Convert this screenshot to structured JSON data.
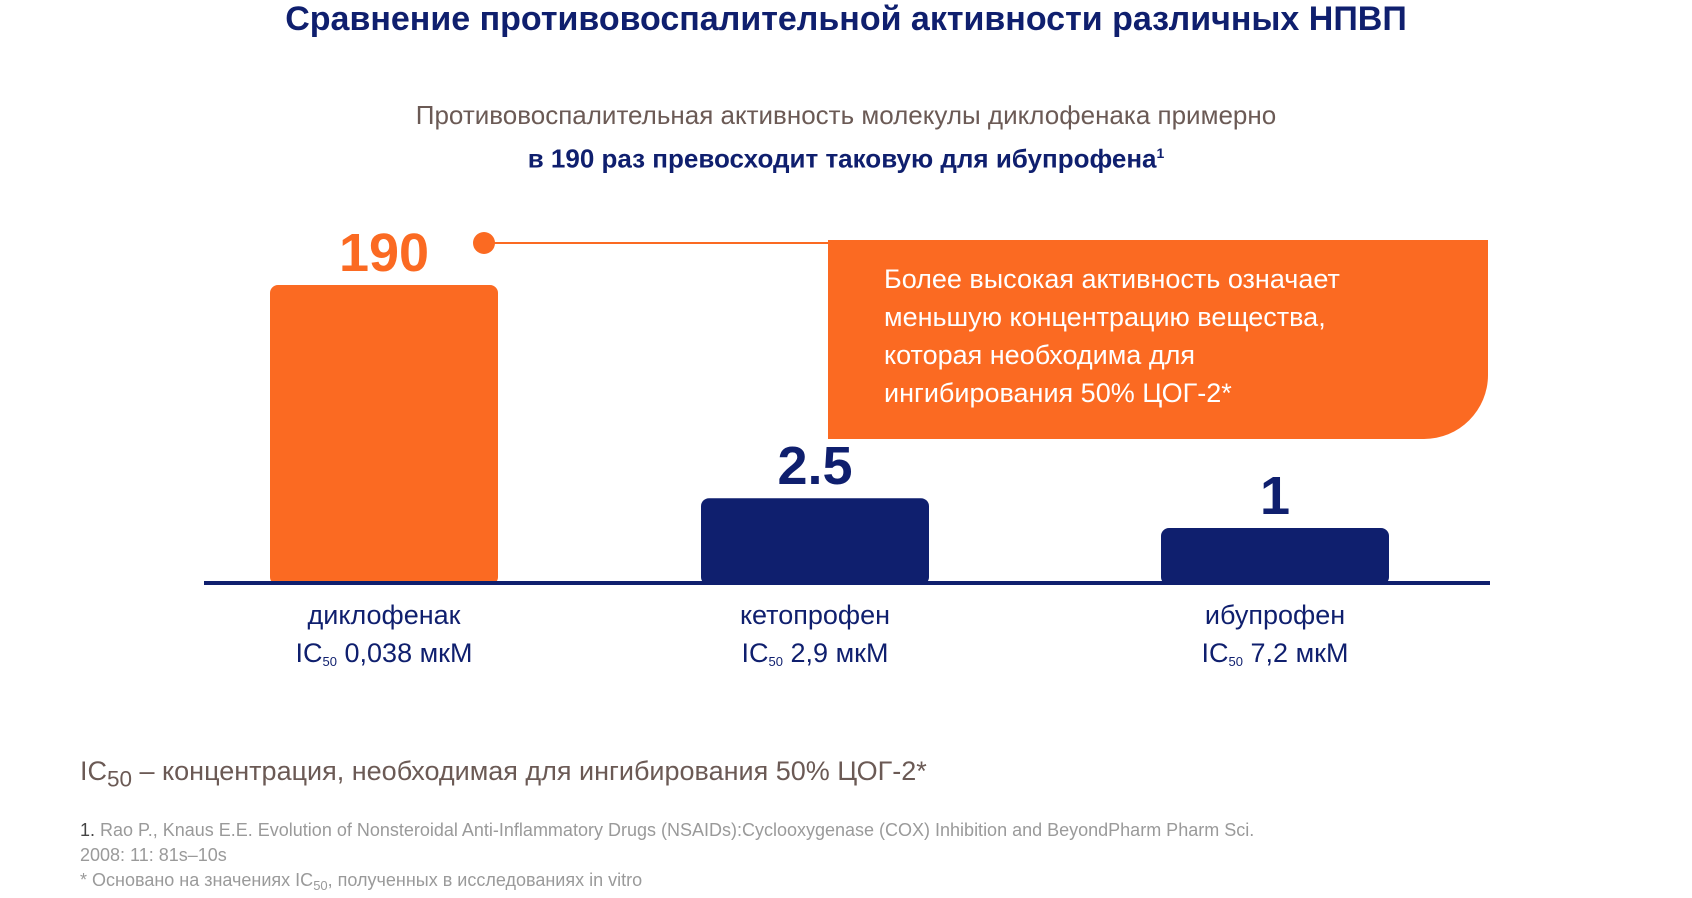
{
  "title": "Сравнение противовоспалительной активности различных НПВП",
  "subtitle": {
    "line1": "Противовоспалительная активность молекулы диклофенака примерно",
    "line2": "в 190 раз превосходит таковую для ибупрофена",
    "footnote_mark": "1"
  },
  "callout": {
    "lines": [
      "Более высокая активность означает",
      "меньшую концентрацию вещества,",
      "которая необходима для",
      "ингибирования 50% ЦОГ-2*"
    ]
  },
  "colors": {
    "orange": "#fb6a22",
    "navy": "#0f1f6e",
    "brown": "#6b5a55"
  },
  "chart_data": {
    "type": "bar",
    "categories": [
      "диклофенак",
      "кетопрофен",
      "ибупрофен"
    ],
    "values": [
      190,
      2.5,
      1
    ],
    "value_labels": [
      "190",
      "2.5",
      "1"
    ],
    "bar_colors": [
      "#fb6a22",
      "#0f1f6e",
      "#0f1f6e"
    ],
    "ic50": {
      "prefix": "IC",
      "sub": "50",
      "values": [
        "0,038 мкМ",
        "2,9 мкМ",
        "7,2 мкМ"
      ]
    }
  },
  "ic_definition": {
    "prefix": "IC",
    "sub": "50",
    "text": " – концентрация, необходимая для ингибирования 50% ЦОГ-2*"
  },
  "references": {
    "ref1_num": "1.",
    "ref1_line1": " Rao P., Knaus E.E. Evolution of Nonsteroidal Anti-Inflammatory Drugs (NSAIDs):Cyclooxygenase (COX) Inhibition and BeyondPharm Pharm Sci.",
    "ref1_line2": "2008: 11: 81s–10s",
    "note_prefix": "* Основано на значениях IC",
    "note_sub": "50",
    "note_suffix": ", полученных в исследованиях in vitro"
  }
}
